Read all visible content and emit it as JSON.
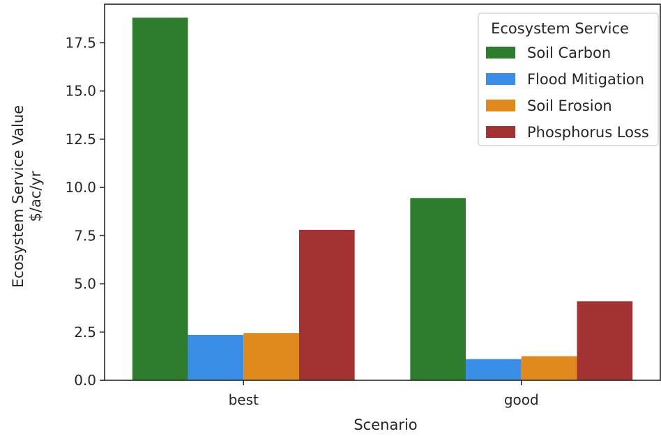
{
  "chart_data": {
    "type": "bar",
    "title": "",
    "xlabel": "Scenario",
    "ylabel_lines": [
      "Ecosystem Service Value",
      "$/ac/yr"
    ],
    "categories": [
      "best",
      "good"
    ],
    "series": [
      {
        "name": "Soil Carbon",
        "color": "#2e7d2e",
        "values": [
          18.8,
          9.45
        ]
      },
      {
        "name": "Flood Mitigation",
        "color": "#3a8ee6",
        "values": [
          2.35,
          1.1
        ]
      },
      {
        "name": "Soil Erosion",
        "color": "#e08a1e",
        "values": [
          2.45,
          1.25
        ]
      },
      {
        "name": "Phosphorus Loss",
        "color": "#a33232",
        "values": [
          7.8,
          4.1
        ]
      }
    ],
    "ylim": [
      0,
      19.5
    ],
    "yticks": [
      0.0,
      2.5,
      5.0,
      7.5,
      10.0,
      12.5,
      15.0,
      17.5
    ],
    "ytick_labels": [
      "0.0",
      "2.5",
      "5.0",
      "7.5",
      "10.0",
      "12.5",
      "15.0",
      "17.5"
    ],
    "grid": false,
    "legend": {
      "title": "Ecosystem Service",
      "placement": "top-right"
    }
  }
}
